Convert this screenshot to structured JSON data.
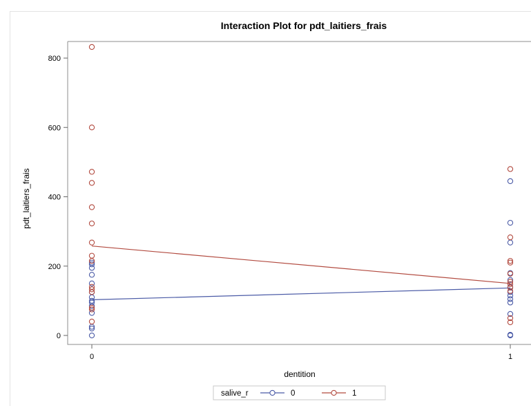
{
  "chart_data": {
    "type": "scatter",
    "title": "Interaction Plot for pdt_laitiers_frais",
    "xlabel": "dentition",
    "ylabel": "pdt_laitiers_frais",
    "x_ticks": [
      "0",
      "1"
    ],
    "y_ticks": [
      "0",
      "200",
      "400",
      "600",
      "800"
    ],
    "ylim": [
      -20,
      855
    ],
    "grid": false,
    "legend": {
      "title": "salive_r",
      "placement": "bottom-center",
      "entries": [
        "0",
        "1"
      ]
    },
    "series": [
      {
        "name": "0",
        "color": "#4a5aa6",
        "mean_line": [
          {
            "x": 0,
            "y": 103
          },
          {
            "x": 1,
            "y": 137
          }
        ],
        "points": [
          {
            "x": 0,
            "y": 210
          },
          {
            "x": 0,
            "y": 205
          },
          {
            "x": 0,
            "y": 195
          },
          {
            "x": 0,
            "y": 175
          },
          {
            "x": 0,
            "y": 150
          },
          {
            "x": 0,
            "y": 125
          },
          {
            "x": 0,
            "y": 110
          },
          {
            "x": 0,
            "y": 100
          },
          {
            "x": 0,
            "y": 95
          },
          {
            "x": 0,
            "y": 85
          },
          {
            "x": 0,
            "y": 65
          },
          {
            "x": 0,
            "y": 25
          },
          {
            "x": 0,
            "y": 20
          },
          {
            "x": 0,
            "y": 0
          },
          {
            "x": 1,
            "y": 445
          },
          {
            "x": 1,
            "y": 325
          },
          {
            "x": 1,
            "y": 268
          },
          {
            "x": 1,
            "y": 180
          },
          {
            "x": 1,
            "y": 160
          },
          {
            "x": 1,
            "y": 140
          },
          {
            "x": 1,
            "y": 125
          },
          {
            "x": 1,
            "y": 115
          },
          {
            "x": 1,
            "y": 105
          },
          {
            "x": 1,
            "y": 95
          },
          {
            "x": 1,
            "y": 62
          },
          {
            "x": 1,
            "y": 2
          },
          {
            "x": 1,
            "y": 0
          }
        ]
      },
      {
        "name": "1",
        "color": "#b24a3f",
        "mean_line": [
          {
            "x": 0,
            "y": 258
          },
          {
            "x": 1,
            "y": 150
          }
        ],
        "points": [
          {
            "x": 0,
            "y": 832
          },
          {
            "x": 0,
            "y": 600
          },
          {
            "x": 0,
            "y": 472
          },
          {
            "x": 0,
            "y": 440
          },
          {
            "x": 0,
            "y": 370
          },
          {
            "x": 0,
            "y": 323
          },
          {
            "x": 0,
            "y": 268
          },
          {
            "x": 0,
            "y": 230
          },
          {
            "x": 0,
            "y": 215
          },
          {
            "x": 0,
            "y": 140
          },
          {
            "x": 0,
            "y": 133
          },
          {
            "x": 0,
            "y": 125
          },
          {
            "x": 0,
            "y": 80
          },
          {
            "x": 0,
            "y": 75
          },
          {
            "x": 0,
            "y": 40
          },
          {
            "x": 1,
            "y": 480
          },
          {
            "x": 1,
            "y": 283
          },
          {
            "x": 1,
            "y": 215
          },
          {
            "x": 1,
            "y": 210
          },
          {
            "x": 1,
            "y": 178
          },
          {
            "x": 1,
            "y": 155
          },
          {
            "x": 1,
            "y": 148
          },
          {
            "x": 1,
            "y": 138
          },
          {
            "x": 1,
            "y": 128
          },
          {
            "x": 1,
            "y": 50
          },
          {
            "x": 1,
            "y": 38
          }
        ]
      }
    ]
  }
}
